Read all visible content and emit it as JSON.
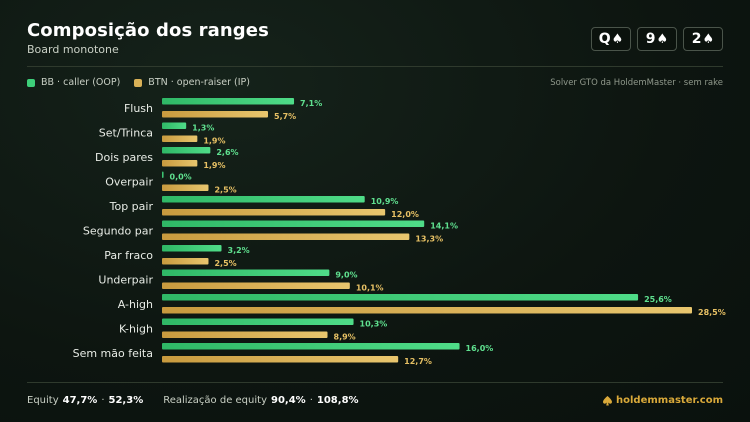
{
  "header": {
    "title": "Composição dos ranges",
    "subtitle": "Board monotone",
    "board": [
      {
        "rank": "Q",
        "suit": "♠"
      },
      {
        "rank": "9",
        "suit": "♠"
      },
      {
        "rank": "2",
        "suit": "♠"
      }
    ]
  },
  "legend": {
    "oop": "BB · caller (OOP)",
    "ip": "BTN · open-raiser (IP)",
    "source": "Solver GTO da HoldemMaster · sem rake"
  },
  "colors": {
    "oop": "#3ecf7a",
    "ip": "#d9b157",
    "oop_label": "#5fe08f",
    "ip_label": "#e6c064"
  },
  "chart_data": {
    "type": "bar",
    "orientation": "horizontal",
    "categories": [
      "Flush",
      "Set/Trinca",
      "Dois pares",
      "Overpair",
      "Top pair",
      "Segundo par",
      "Par fraco",
      "Underpair",
      "A-high",
      "K-high",
      "Sem mão feita"
    ],
    "series": [
      {
        "name": "BB · caller (OOP)",
        "values": [
          7.1,
          1.3,
          2.6,
          0.0,
          10.9,
          14.1,
          3.2,
          9.0,
          25.6,
          10.3,
          16.0
        ]
      },
      {
        "name": "BTN · open-raiser (IP)",
        "values": [
          5.7,
          1.9,
          1.9,
          2.5,
          12.0,
          13.3,
          2.5,
          10.1,
          28.5,
          8.9,
          12.7
        ]
      }
    ],
    "value_labels": [
      [
        "7,1%",
        "1,3%",
        "2,6%",
        "0,0%",
        "10,9%",
        "14,1%",
        "3,2%",
        "9,0%",
        "25,6%",
        "10,3%",
        "16,0%"
      ],
      [
        "5,7%",
        "1,9%",
        "1,9%",
        "2,5%",
        "12,0%",
        "13,3%",
        "2,5%",
        "10,1%",
        "28,5%",
        "8,9%",
        "12,7%"
      ]
    ],
    "xlim": [
      0,
      28.5
    ],
    "grid": false,
    "legend_position": "top-left"
  },
  "footer": {
    "equity_label": "Equity",
    "equity_oop": "47,7%",
    "equity_ip": "52,3%",
    "realization_label": "Realização de equity",
    "realization_oop": "90,4%",
    "realization_ip": "108,8%",
    "sep": "·",
    "brand": "holdemmaster.com",
    "brand_icon": "spade-icon"
  }
}
